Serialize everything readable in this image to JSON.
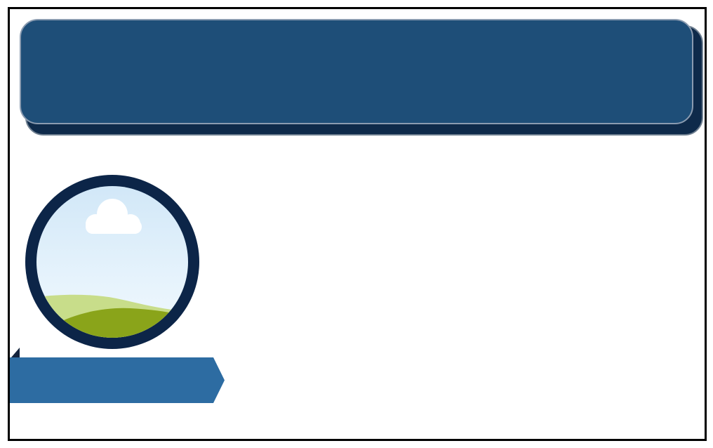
{
  "header": {
    "title": ""
  },
  "ribbon": {
    "label": ""
  },
  "colors": {
    "header_fill": "#1e4e78",
    "header_shadow": "#0e2a4a",
    "frame_ring": "#0c2548",
    "ribbon_fill": "#2d6ca2",
    "sky_top": "#cfe6f7",
    "hill_light": "#c8dd8a",
    "hill_dark": "#8aa41a"
  },
  "picture": {
    "icon": "landscape-picture-placeholder-icon"
  }
}
